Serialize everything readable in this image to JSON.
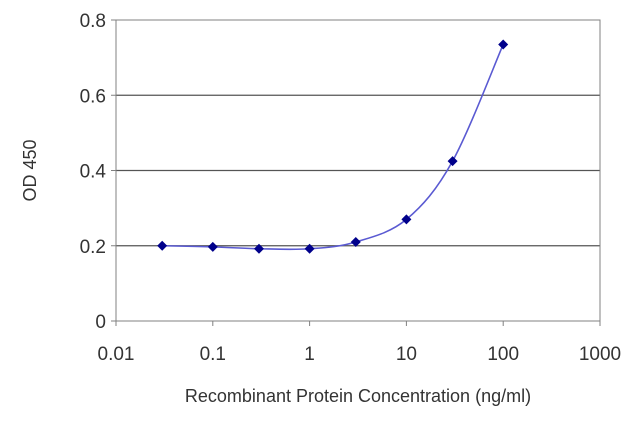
{
  "chart_data": {
    "type": "scatter",
    "title": "",
    "xlabel": "Recombinant Protein Concentration (ng/ml)",
    "ylabel": "OD 450",
    "x_scale": "log",
    "xlim": [
      0.01,
      1000
    ],
    "ylim": [
      0,
      0.8
    ],
    "x_ticks": [
      0.01,
      0.1,
      1,
      10,
      100,
      1000
    ],
    "x_tick_labels": [
      "0.01",
      "0.1",
      "1",
      "10",
      "100",
      "1000"
    ],
    "y_ticks": [
      0,
      0.2,
      0.4,
      0.6,
      0.8
    ],
    "y_tick_labels": [
      "0",
      "0.2",
      "0.4",
      "0.6",
      "0.8"
    ],
    "grid": "horizontal",
    "legend": "none",
    "series": [
      {
        "x": [
          0.03,
          0.1,
          0.3,
          1,
          3,
          10,
          30,
          100
        ],
        "y": [
          0.2,
          0.197,
          0.192,
          0.192,
          0.21,
          0.27,
          0.425,
          0.735
        ],
        "color": "#00008b",
        "line_color": "#5a5ad2",
        "marker": "diamond",
        "fit": "smooth-curve"
      }
    ]
  }
}
